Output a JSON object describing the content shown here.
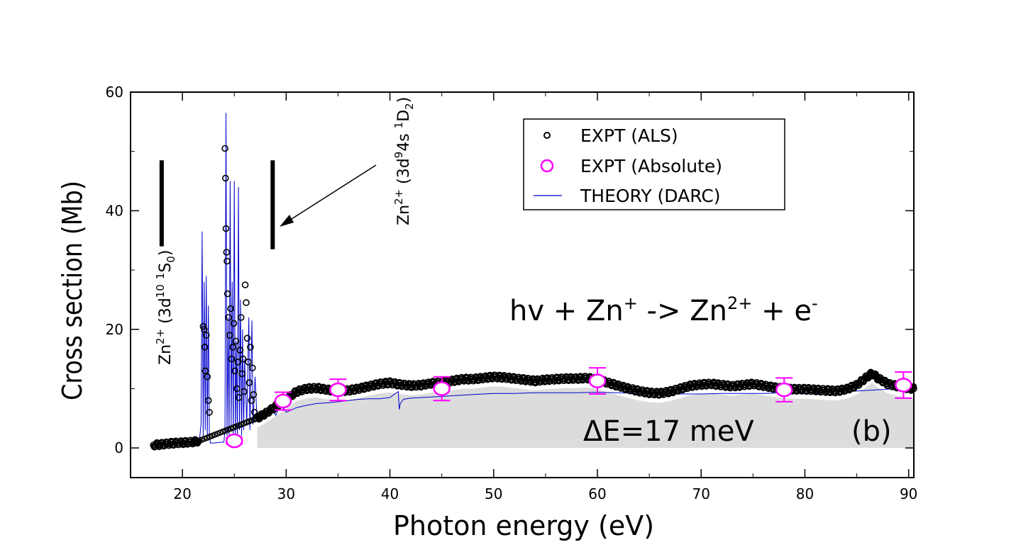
{
  "chart_data": {
    "type": "scatter",
    "xlabel": "Photon energy (eV)",
    "ylabel": "Cross section (Mb)",
    "xlim": [
      15,
      90.5
    ],
    "ylim": [
      -5,
      60
    ],
    "xticks": [
      20,
      30,
      40,
      50,
      60,
      70,
      80,
      90
    ],
    "yticks": [
      0,
      20,
      40,
      60
    ],
    "grid": false,
    "legend_position": "top-right",
    "series": [
      {
        "name": "EXPT (ALS)",
        "kind": "points",
        "marker": "small-open-circle",
        "color": "#000000",
        "continuum": [
          [
            17.2,
            0.5
          ],
          [
            18,
            0.6
          ],
          [
            19,
            0.8
          ],
          [
            20,
            0.9
          ],
          [
            21,
            1.0
          ],
          [
            21.6,
            1.2
          ],
          [
            27.2,
            5.0
          ],
          [
            28,
            5.8
          ],
          [
            29,
            7.0
          ],
          [
            30,
            8.2
          ],
          [
            31,
            9.5
          ],
          [
            32,
            10.0
          ],
          [
            33,
            10.1
          ],
          [
            34,
            9.8
          ],
          [
            35,
            9.6
          ],
          [
            36,
            9.7
          ],
          [
            37,
            10.0
          ],
          [
            38,
            10.4
          ],
          [
            39,
            10.8
          ],
          [
            40,
            11.0
          ],
          [
            41,
            10.7
          ],
          [
            42,
            10.5
          ],
          [
            43,
            10.6
          ],
          [
            44,
            10.9
          ],
          [
            45,
            11.0
          ],
          [
            46,
            11.3
          ],
          [
            47,
            11.6
          ],
          [
            48,
            11.6
          ],
          [
            49,
            11.8
          ],
          [
            50,
            12.0
          ],
          [
            51,
            11.9
          ],
          [
            52,
            11.7
          ],
          [
            53,
            11.5
          ],
          [
            54,
            11.3
          ],
          [
            55,
            11.5
          ],
          [
            56,
            11.6
          ],
          [
            57,
            11.7
          ],
          [
            58,
            11.7
          ],
          [
            59,
            11.8
          ],
          [
            60,
            11.5
          ],
          [
            61,
            11.0
          ],
          [
            62,
            10.5
          ],
          [
            63,
            10.0
          ],
          [
            64,
            9.6
          ],
          [
            65,
            9.3
          ],
          [
            66,
            9.2
          ],
          [
            67,
            9.5
          ],
          [
            68,
            10.0
          ],
          [
            69,
            10.5
          ],
          [
            70,
            10.7
          ],
          [
            71,
            10.8
          ],
          [
            72,
            10.6
          ],
          [
            73,
            10.4
          ],
          [
            74,
            10.6
          ],
          [
            75,
            10.8
          ],
          [
            76,
            10.5
          ],
          [
            77,
            10.2
          ],
          [
            78,
            10.0
          ],
          [
            79,
            9.9
          ],
          [
            80,
            9.9
          ],
          [
            81,
            9.8
          ],
          [
            82,
            9.7
          ],
          [
            83,
            9.6
          ],
          [
            84,
            9.9
          ],
          [
            85,
            10.6
          ],
          [
            86,
            12.0
          ],
          [
            86.5,
            12.6
          ],
          [
            87,
            11.8
          ],
          [
            88,
            10.8
          ],
          [
            89,
            10.4
          ],
          [
            90,
            10.1
          ],
          [
            90.5,
            10.0
          ]
        ],
        "peaks": [
          [
            22.0,
            20.5
          ],
          [
            22.1,
            20.0
          ],
          [
            22.15,
            17.0
          ],
          [
            22.2,
            13.0
          ],
          [
            22.3,
            19.0
          ],
          [
            22.4,
            12.0
          ],
          [
            22.5,
            8.0
          ],
          [
            22.6,
            6.0
          ],
          [
            24.1,
            50.5
          ],
          [
            24.15,
            45.5
          ],
          [
            24.2,
            37.0
          ],
          [
            24.25,
            33.0
          ],
          [
            24.3,
            31.5
          ],
          [
            24.35,
            26.0
          ],
          [
            24.45,
            22.0
          ],
          [
            24.55,
            19.0
          ],
          [
            24.65,
            23.5
          ],
          [
            24.75,
            15.0
          ],
          [
            24.85,
            17.0
          ],
          [
            24.95,
            21.0
          ],
          [
            25.05,
            13.0
          ],
          [
            25.15,
            18.0
          ],
          [
            25.25,
            10.0
          ],
          [
            25.35,
            14.5
          ],
          [
            25.45,
            8.5
          ],
          [
            25.55,
            16.5
          ],
          [
            25.65,
            22.0
          ],
          [
            25.75,
            12.5
          ],
          [
            25.85,
            15.0
          ],
          [
            25.95,
            9.5
          ],
          [
            26.05,
            27.5
          ],
          [
            26.15,
            24.5
          ],
          [
            26.25,
            18.5
          ],
          [
            26.35,
            14.5
          ],
          [
            26.45,
            11.0
          ],
          [
            26.55,
            17.0
          ],
          [
            26.65,
            8.0
          ],
          [
            26.75,
            13.5
          ],
          [
            26.85,
            9.0
          ],
          [
            26.95,
            6.0
          ],
          [
            27.1,
            5.0
          ]
        ]
      },
      {
        "name": "EXPT (Absolute)",
        "kind": "points-with-errorbars",
        "marker": "large-open-circle",
        "color": "#ff00ff",
        "points": [
          {
            "x": 25.0,
            "y": 1.2,
            "err": 0.5
          },
          {
            "x": 29.7,
            "y": 7.9,
            "err": 1.5
          },
          {
            "x": 35.0,
            "y": 9.8,
            "err": 1.8
          },
          {
            "x": 45.0,
            "y": 10.0,
            "err": 2.0
          },
          {
            "x": 60.0,
            "y": 11.3,
            "err": 2.2
          },
          {
            "x": 78.0,
            "y": 9.8,
            "err": 2.0
          },
          {
            "x": 89.5,
            "y": 10.6,
            "err": 2.2
          }
        ]
      },
      {
        "name": "THEORY (DARC)",
        "kind": "line",
        "color": "#0000cc",
        "points": [
          [
            17.2,
            0.4
          ],
          [
            20,
            0.5
          ],
          [
            21.6,
            0.6
          ],
          [
            21.8,
            4.0
          ],
          [
            21.9,
            36.5
          ],
          [
            22.0,
            2.0
          ],
          [
            22.1,
            28.0
          ],
          [
            22.2,
            3.0
          ],
          [
            22.3,
            29.0
          ],
          [
            22.4,
            1.5
          ],
          [
            22.5,
            24.0
          ],
          [
            22.6,
            2.0
          ],
          [
            22.7,
            0.8
          ],
          [
            24.0,
            1.0
          ],
          [
            24.1,
            3.0
          ],
          [
            24.2,
            56.5
          ],
          [
            24.3,
            2.0
          ],
          [
            24.4,
            22.0
          ],
          [
            24.5,
            1.5
          ],
          [
            24.6,
            45.0
          ],
          [
            24.7,
            3.0
          ],
          [
            24.8,
            28.0
          ],
          [
            24.9,
            1.5
          ],
          [
            25.0,
            45.0
          ],
          [
            25.1,
            2.0
          ],
          [
            25.2,
            18.0
          ],
          [
            25.3,
            1.5
          ],
          [
            25.4,
            44.0
          ],
          [
            25.5,
            3.0
          ],
          [
            25.6,
            25.0
          ],
          [
            25.7,
            2.0
          ],
          [
            25.8,
            20.0
          ],
          [
            25.9,
            3.0
          ],
          [
            26.0,
            15.0
          ],
          [
            26.2,
            4.0
          ],
          [
            26.4,
            22.0
          ],
          [
            26.5,
            3.0
          ],
          [
            26.7,
            21.5
          ],
          [
            26.8,
            4.0
          ],
          [
            27.0,
            12.0
          ],
          [
            27.2,
            4.5
          ],
          [
            27.5,
            6.0
          ],
          [
            28,
            5.5
          ],
          [
            28.5,
            7.0
          ],
          [
            29,
            5.5
          ],
          [
            29.5,
            7.5
          ],
          [
            30,
            6.0
          ],
          [
            31,
            6.8
          ],
          [
            32,
            7.2
          ],
          [
            33,
            7.5
          ],
          [
            34,
            7.6
          ],
          [
            35,
            7.8
          ],
          [
            36,
            8.0
          ],
          [
            37,
            8.2
          ],
          [
            38,
            8.3
          ],
          [
            39,
            8.3
          ],
          [
            40,
            8.5
          ],
          [
            40.8,
            9.5
          ],
          [
            40.9,
            6.5
          ],
          [
            41.0,
            7.5
          ],
          [
            41.3,
            8.2
          ],
          [
            42,
            8.4
          ],
          [
            44,
            8.6
          ],
          [
            46,
            8.8
          ],
          [
            48,
            9.0
          ],
          [
            50,
            9.2
          ],
          [
            52,
            9.2
          ],
          [
            54,
            9.3
          ],
          [
            56,
            9.3
          ],
          [
            58,
            9.3
          ],
          [
            60,
            9.4
          ],
          [
            62,
            9.3
          ],
          [
            64,
            9.2
          ],
          [
            66,
            9.1
          ],
          [
            68,
            9.1
          ],
          [
            70,
            9.1
          ],
          [
            72,
            9.2
          ],
          [
            74,
            9.2
          ],
          [
            76,
            9.2
          ],
          [
            78,
            9.3
          ],
          [
            80,
            9.3
          ],
          [
            82,
            9.4
          ],
          [
            84,
            9.5
          ],
          [
            86,
            9.7
          ],
          [
            88,
            9.9
          ],
          [
            90,
            10.1
          ]
        ]
      }
    ],
    "shaded_region": {
      "color": "#dcdcdc",
      "label": ""
    },
    "reference_bars": [
      {
        "x": 18.0,
        "y_from": 34,
        "y_to": 48.5
      },
      {
        "x": 28.7,
        "y_from": 33.5,
        "y_to": 48.5
      }
    ],
    "annotations": {
      "reaction": {
        "prefix": "hv + Zn",
        "sup1": "+",
        "mid": " -> Zn",
        "sup2": "2+",
        "mid2": " + e",
        "sup3": "-"
      },
      "resolution": "ΔE=17 meV",
      "panel": "(b)",
      "state1": {
        "a": "Zn",
        "b": "2+",
        "c": " (3d",
        "d": "10",
        "e": " ",
        "f": "1",
        "g": "S",
        "h": "0",
        "i": ")"
      },
      "state2": {
        "a": "Zn",
        "b": "2+",
        "c": " (3d",
        "d": "9",
        "e": "4s ",
        "f": "1",
        "g": "D",
        "h": "2",
        "i": ")"
      }
    }
  }
}
